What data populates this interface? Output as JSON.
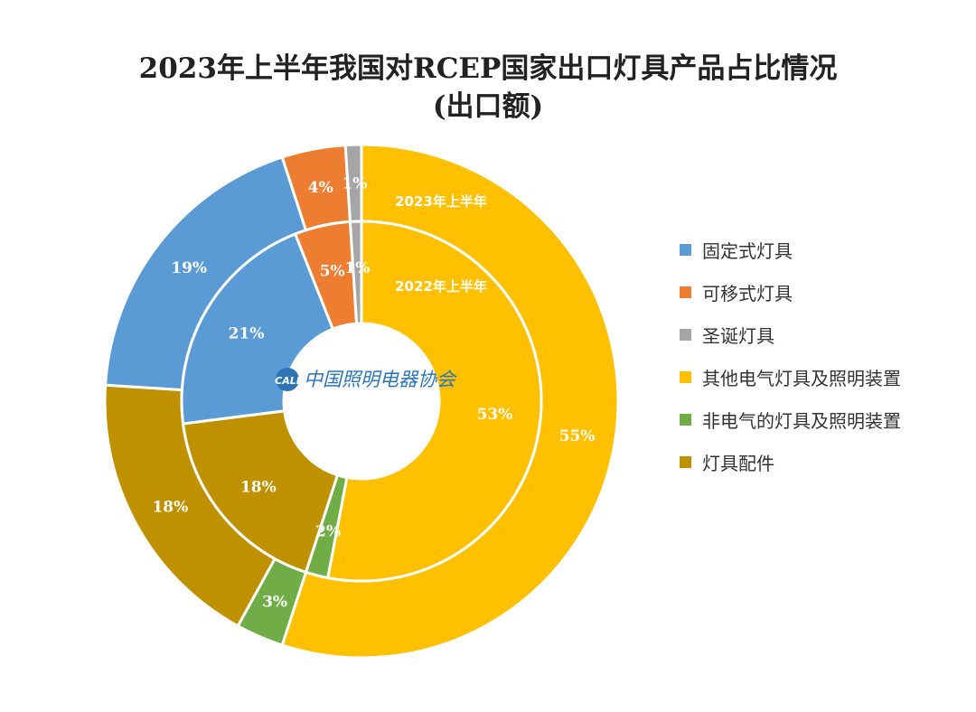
{
  "chart_data": {
    "type": "donut",
    "title": "2023年上半年我国对RCEP国家出口灯具产品占比情况",
    "subtitle": "(出口额)",
    "categories": [
      "固定式灯具",
      "可移式灯具",
      "圣诞灯具",
      "其他电气灯具及照明装置",
      "非电气的灯具及照明装置",
      "灯具配件"
    ],
    "colors": [
      "#5b9bd5",
      "#ed7d31",
      "#a5a5a5",
      "#ffc000",
      "#70ad47",
      "#bf9000"
    ],
    "series": [
      {
        "name": "2023年上半年",
        "ring": "outer",
        "values": [
          19,
          4,
          1,
          55,
          3,
          18
        ],
        "labels": [
          "19%",
          "4%",
          "1%",
          "55%",
          "3%",
          "18%"
        ]
      },
      {
        "name": "2022年上半年",
        "ring": "inner",
        "values": [
          21,
          5,
          1,
          53,
          2,
          18
        ],
        "labels": [
          "21%",
          "5%",
          "1%",
          "53%",
          "2%",
          "18%"
        ]
      }
    ],
    "legend_position": "right"
  },
  "watermark": {
    "text": "中国照明电器协会",
    "logo": "CALI"
  }
}
